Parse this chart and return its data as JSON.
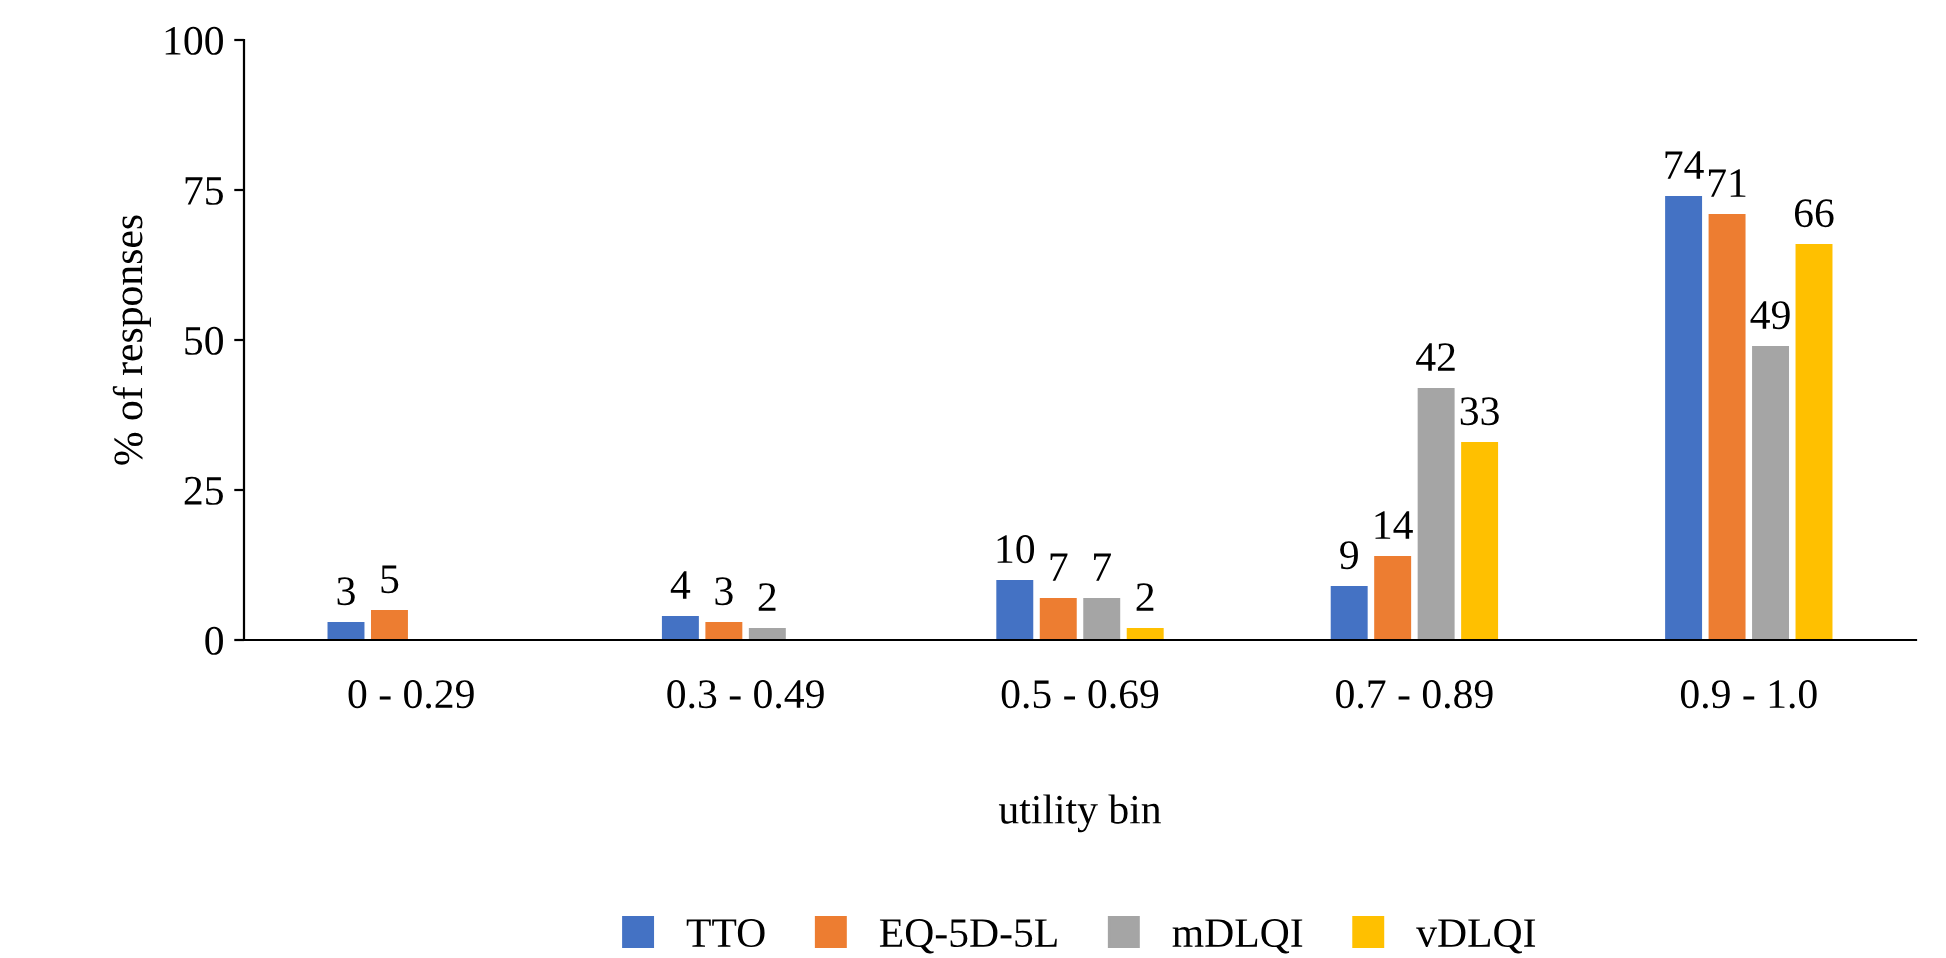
{
  "chart_data": {
    "type": "bar",
    "xlabel": "utility bin",
    "ylabel": "% of responses",
    "categories": [
      "0 - 0.29",
      "0.3 - 0.49",
      "0.5 - 0.69",
      "0.7 - 0.89",
      "0.9 - 1.0"
    ],
    "series": [
      {
        "name": "TTO",
        "color": "#4472c4",
        "values": [
          3,
          4,
          10,
          9,
          74
        ]
      },
      {
        "name": "EQ-5D-5L",
        "color": "#ed7d31",
        "values": [
          5,
          3,
          7,
          14,
          71
        ]
      },
      {
        "name": "mDLQI",
        "color": "#a5a5a5",
        "values": [
          null,
          2,
          7,
          42,
          49
        ]
      },
      {
        "name": "vDLQI",
        "color": "#ffc000",
        "values": [
          null,
          null,
          2,
          33,
          66
        ]
      }
    ],
    "ylim": [
      0,
      100
    ],
    "yticks": [
      0,
      25,
      50,
      75,
      100
    ],
    "grid": false,
    "legend": "bottom",
    "data_labels": true
  }
}
